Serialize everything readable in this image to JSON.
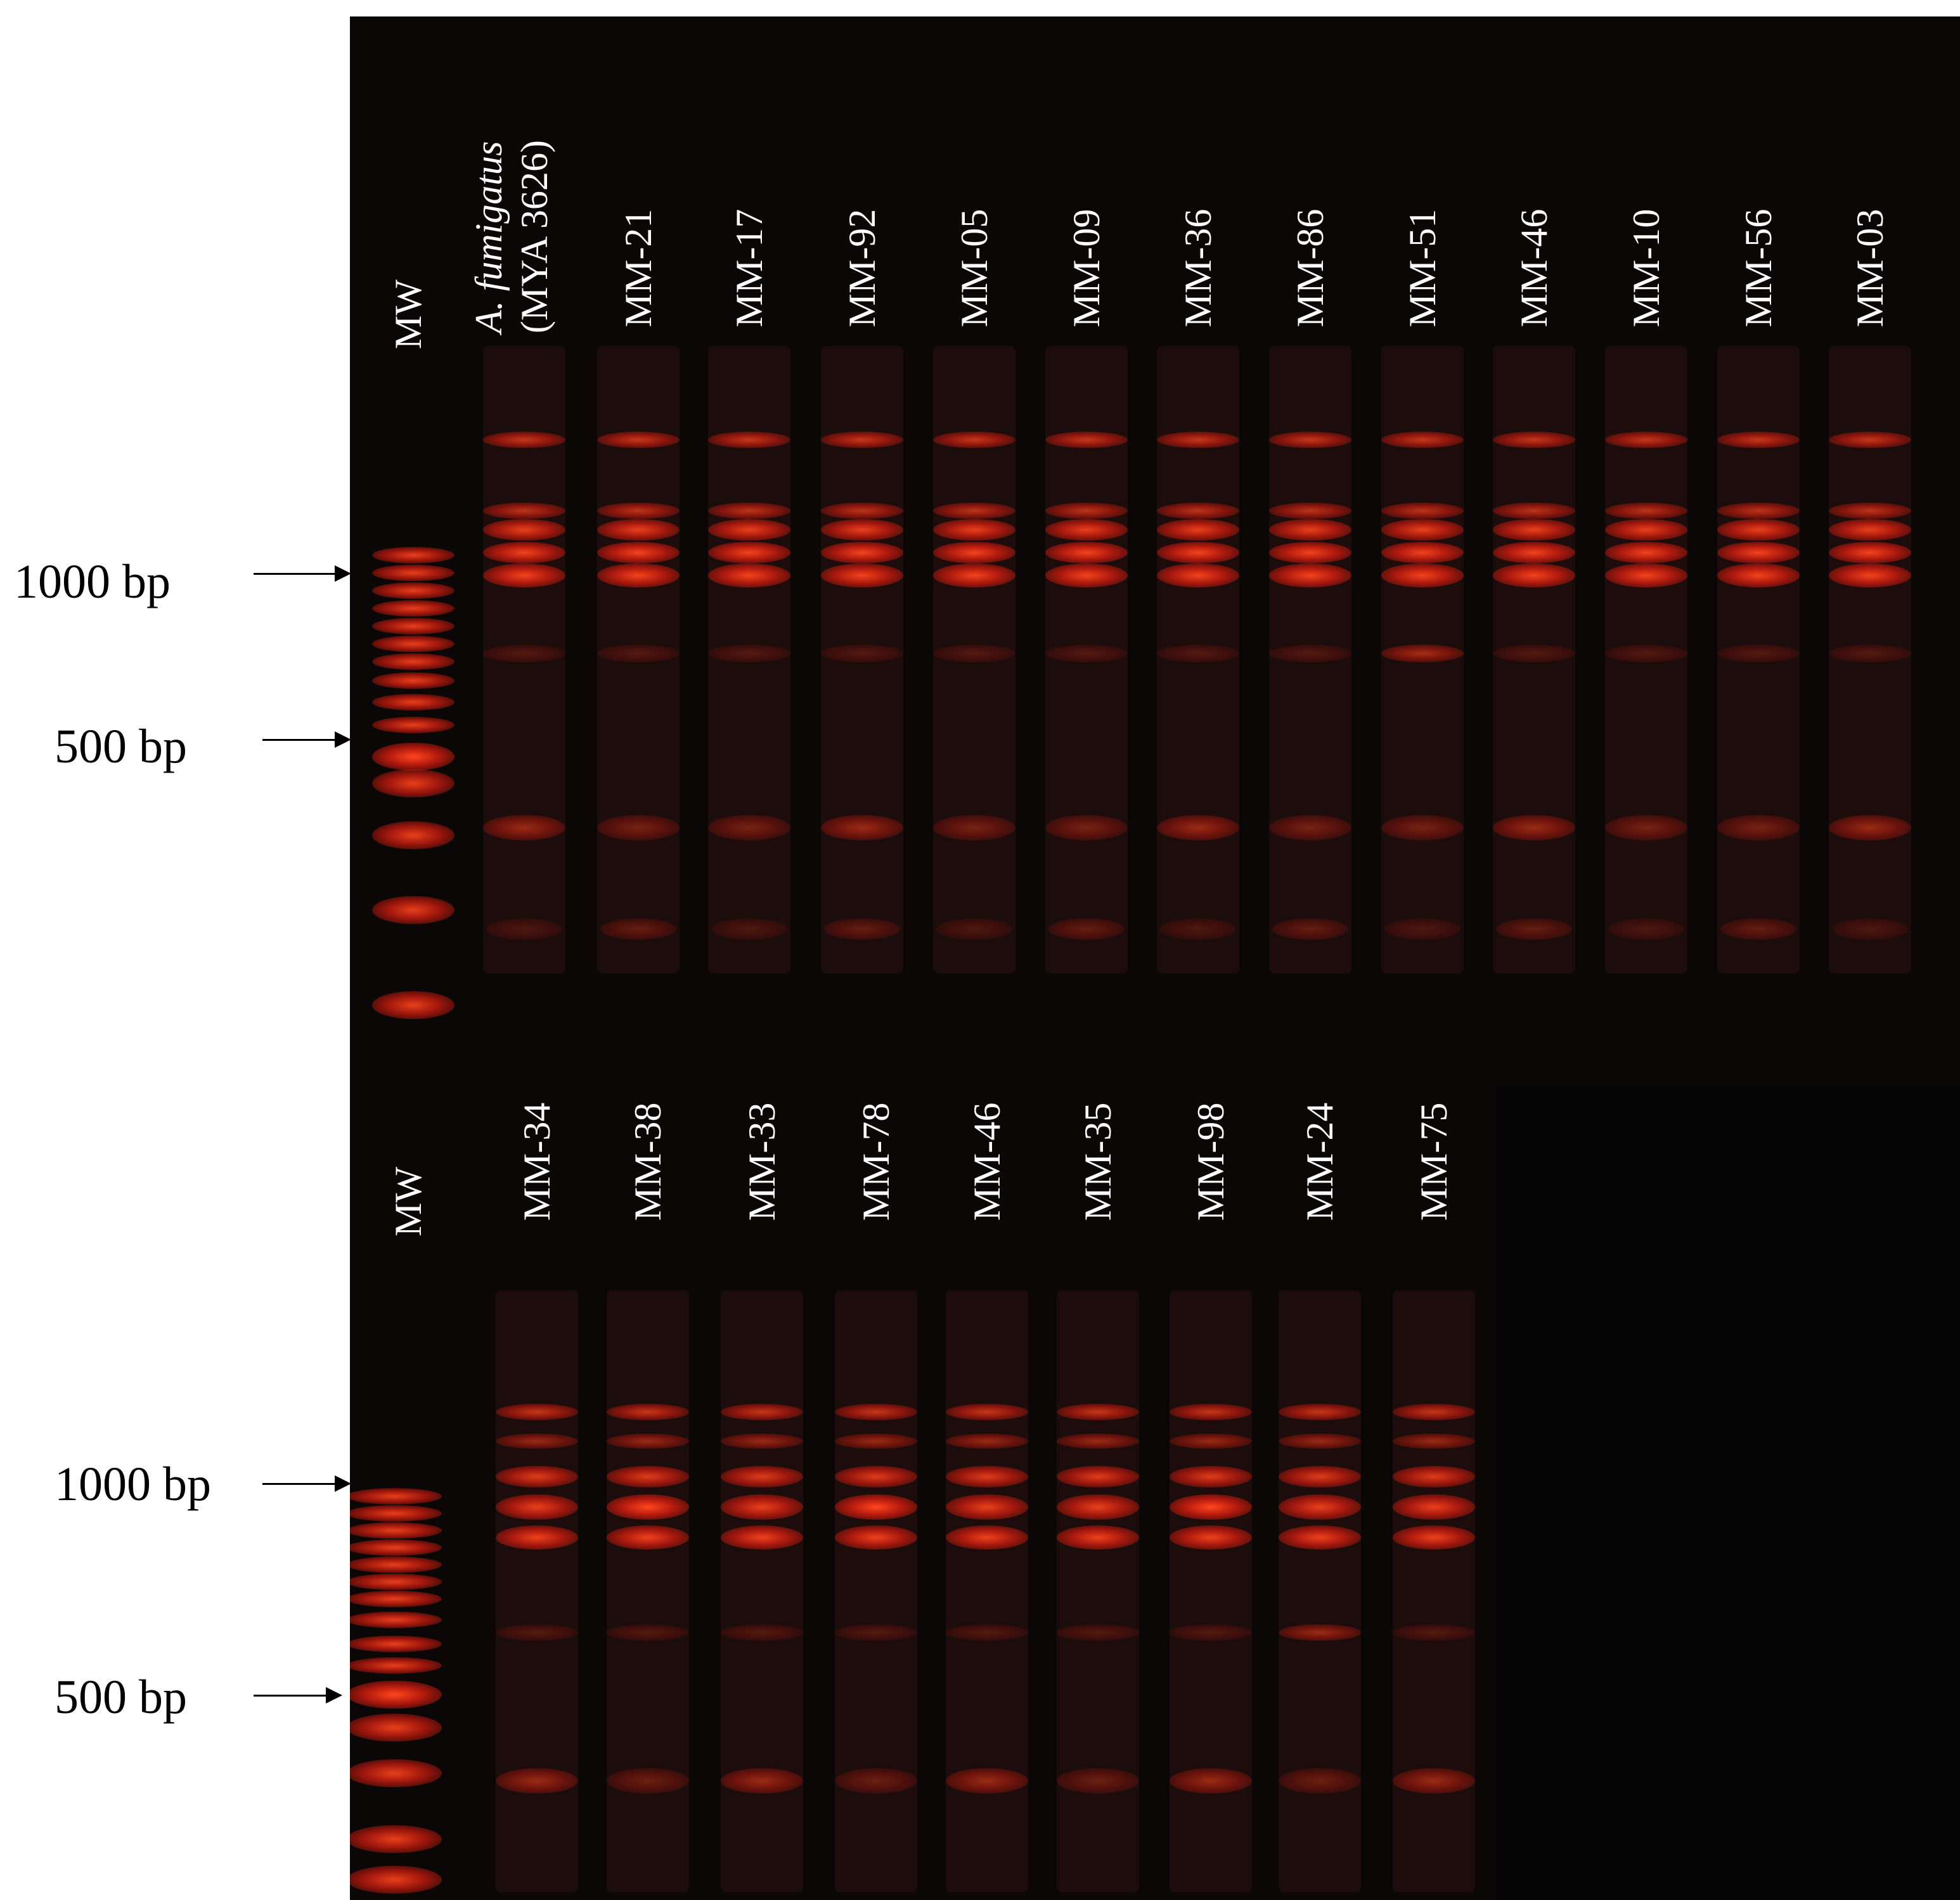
{
  "markers": {
    "top": [
      {
        "label": "1000 bp",
        "bp": 1000
      },
      {
        "label": "500 bp",
        "bp": 500
      }
    ],
    "bottom": [
      {
        "label": "1000 bp",
        "bp": 1000
      },
      {
        "label": "500 bp",
        "bp": 500
      }
    ]
  },
  "top_gel": {
    "ladder_label": "MW",
    "lanes": [
      {
        "line1": "A. fumigatus",
        "line2": "(MYA 3626)"
      },
      {
        "line1": "MM-21"
      },
      {
        "line1": "MM-17"
      },
      {
        "line1": "MM-92"
      },
      {
        "line1": "MM-05"
      },
      {
        "line1": "MM-09"
      },
      {
        "line1": "MM-36"
      },
      {
        "line1": "MM-86"
      },
      {
        "line1": "MM-51"
      },
      {
        "line1": "MM-46"
      },
      {
        "line1": "MM-10"
      },
      {
        "line1": "MM-56"
      },
      {
        "line1": "MM-03"
      }
    ]
  },
  "bottom_gel": {
    "ladder_label": "MW",
    "lanes": [
      {
        "line1": "MM-34"
      },
      {
        "line1": "MM-38"
      },
      {
        "line1": "MM-33"
      },
      {
        "line1": "MM-78"
      },
      {
        "line1": "MM-46"
      },
      {
        "line1": "MM-35"
      },
      {
        "line1": "MM-98"
      },
      {
        "line1": "MM-24"
      },
      {
        "line1": "MM-75"
      }
    ]
  },
  "colors": {
    "band": "#ff3a1a",
    "gel": "#0b0707"
  }
}
